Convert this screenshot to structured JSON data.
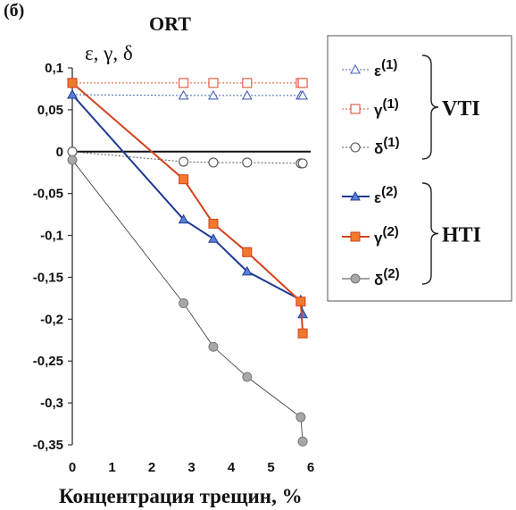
{
  "chart_data": {
    "type": "line",
    "panel_label": "(б)",
    "title": "ORT",
    "ylabel": "ε, γ, δ",
    "xlabel": "Концентрация трещин, %",
    "xlim": [
      0,
      6
    ],
    "ylim": [
      -0.35,
      0.1
    ],
    "x_ticks": [
      0,
      1,
      2,
      3,
      4,
      5,
      6
    ],
    "x_tick_labels": [
      "0",
      "1",
      "2",
      "3",
      "4",
      "5",
      "6"
    ],
    "y_ticks": [
      0.1,
      0.05,
      0,
      -0.05,
      -0.1,
      -0.15,
      -0.2,
      -0.25,
      -0.3,
      -0.35
    ],
    "y_tick_labels": [
      "0,1",
      "0,05",
      "0",
      "-0,05",
      "-0,1",
      "-0,15",
      "-0,2",
      "-0,25",
      "-0,3",
      "-0,35"
    ],
    "grid": false,
    "legend_position": "right",
    "legend_groups": [
      {
        "label": "VTI",
        "series": [
          0,
          1,
          2
        ]
      },
      {
        "label": "HTI",
        "series": [
          3,
          4,
          5
        ]
      }
    ],
    "series": [
      {
        "name": "ε(1)",
        "base": "ε",
        "sup": "(1)",
        "color": "#4a63b5",
        "line": "dotted",
        "marker": "triangle-open",
        "x": [
          0,
          2.8,
          3.55,
          4.4,
          5.75,
          5.8
        ],
        "y": [
          0.068,
          0.067,
          0.067,
          0.067,
          0.067,
          0.067
        ]
      },
      {
        "name": "γ(1)",
        "base": "γ",
        "sup": "(1)",
        "color": "#e0533a",
        "line": "dotted",
        "marker": "square-open",
        "x": [
          0,
          2.8,
          3.55,
          4.4,
          5.75,
          5.8
        ],
        "y": [
          0.082,
          0.082,
          0.082,
          0.082,
          0.082,
          0.082
        ]
      },
      {
        "name": "δ(1)",
        "base": "δ",
        "sup": "(1)",
        "color": "#555555",
        "line": "dotted",
        "marker": "circle-open",
        "x": [
          0,
          2.8,
          3.55,
          4.4,
          5.75,
          5.8
        ],
        "y": [
          0,
          -0.012,
          -0.013,
          -0.013,
          -0.014,
          -0.014
        ]
      },
      {
        "name": "ε(2)",
        "base": "ε",
        "sup": "(2)",
        "color": "#1f3a93",
        "line": "solid",
        "marker": "triangle-filled",
        "x": [
          0,
          2.8,
          3.55,
          4.4,
          5.75,
          5.8
        ],
        "y": [
          0.068,
          -0.081,
          -0.104,
          -0.143,
          -0.177,
          -0.194
        ]
      },
      {
        "name": "γ(2)",
        "base": "γ",
        "sup": "(2)",
        "color": "#d4421e",
        "line": "solid",
        "marker": "square-filled",
        "x": [
          0,
          2.8,
          3.55,
          4.4,
          5.75,
          5.8
        ],
        "y": [
          0.082,
          -0.033,
          -0.086,
          -0.12,
          -0.179,
          -0.217
        ]
      },
      {
        "name": "δ(2)",
        "base": "δ",
        "sup": "(2)",
        "color": "#555555",
        "line": "thin",
        "marker": "circle-filled",
        "x": [
          0,
          2.8,
          3.55,
          4.4,
          5.75,
          5.8
        ],
        "y": [
          -0.01,
          -0.181,
          -0.233,
          -0.269,
          -0.317,
          -0.346
        ]
      }
    ],
    "colors": {
      "line_light": "#999999",
      "marker_fill_gray": "#a8a8a8",
      "marker_fill_orange": "#f07a2c",
      "marker_fill_blue": "#5b7fd6"
    }
  }
}
